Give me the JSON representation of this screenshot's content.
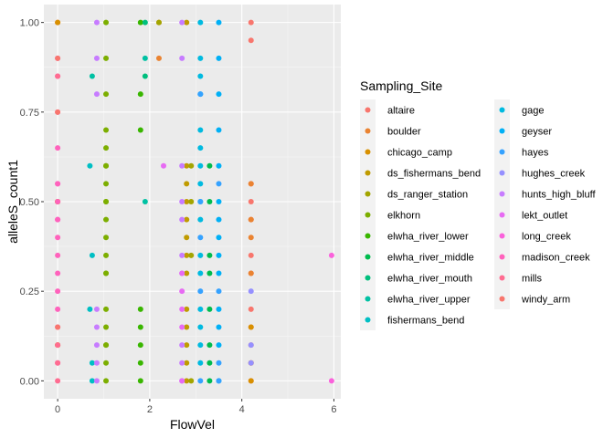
{
  "chart_data": {
    "type": "scatter",
    "title": "",
    "xlabel": "FlowVel",
    "ylabel": "alleleS_count1",
    "xlim": [
      -0.3,
      6.15
    ],
    "ylim": [
      -0.05,
      1.05
    ],
    "x_ticks": [
      0,
      2,
      4,
      6
    ],
    "x_tick_labels": [
      "0",
      "2",
      "4",
      "6"
    ],
    "y_ticks": [
      0,
      0.25,
      0.5,
      0.75,
      1
    ],
    "y_tick_labels": [
      "0.00",
      "0.25",
      "0.50",
      "0.75",
      "1.00"
    ],
    "grid": true,
    "legend": {
      "title": "Sampling_Site",
      "position": "right",
      "columns": 2
    },
    "series": [
      {
        "name": "altaire",
        "color": "#F8766D",
        "x": [
          4.2,
          4.2,
          4.2,
          4.2,
          4.2,
          4.2,
          4.2,
          4.2,
          4.2,
          4.2,
          4.2,
          4.2,
          0,
          0
        ],
        "y": [
          1,
          0.95,
          0.5,
          0.45,
          0.35,
          0.3,
          0.2,
          0.15,
          0.1,
          0.05,
          0,
          0.55,
          1,
          0.5
        ]
      },
      {
        "name": "boulder",
        "color": "#EA8331",
        "x": [
          2.2,
          2.2,
          4.2,
          4.2,
          4.2,
          4.2,
          0,
          0
        ],
        "y": [
          1,
          0.9,
          0.55,
          0.45,
          0.4,
          0.3,
          0.5,
          0.1
        ]
      },
      {
        "name": "chicago_camp",
        "color": "#D89000",
        "x": [
          0,
          0,
          0,
          4.2,
          4.2,
          4.2
        ],
        "y": [
          1,
          0.5,
          0.1,
          0.15,
          0.05,
          0
        ]
      },
      {
        "name": "ds_fishermans_bend",
        "color": "#C09B00",
        "x": [
          2.8,
          2.8,
          2.8,
          2.8,
          2.8,
          2.8,
          2.8,
          2.8,
          2.8,
          2.8,
          2.8,
          2.8,
          2.8
        ],
        "y": [
          1,
          0.6,
          0.55,
          0.45,
          0.4,
          0.35,
          0.3,
          0.2,
          0.15,
          0.1,
          0.05,
          0,
          0.5
        ]
      },
      {
        "name": "ds_ranger_station",
        "color": "#A3A500",
        "x": [
          2.2,
          2.9,
          2.9,
          2.9,
          2.9
        ],
        "y": [
          1,
          0.6,
          0.5,
          0.35,
          0
        ]
      },
      {
        "name": "elkhorn",
        "color": "#7CAE00",
        "x": [
          1.05,
          1.05,
          1.05,
          1.05,
          1.05,
          1.05,
          1.05,
          1.05,
          1.05,
          1.05,
          1.05,
          1.05,
          1.05,
          1.05,
          1.05,
          1.05,
          1.05,
          1.05,
          1.05,
          1.05,
          1.05
        ],
        "y": [
          1,
          0.9,
          0.8,
          0.7,
          0.65,
          0.6,
          0.55,
          0.5,
          0.45,
          0.4,
          0.35,
          0.3,
          0.2,
          0.15,
          0.1,
          0.05,
          0,
          0.6,
          0.5,
          0.3,
          0.1
        ]
      },
      {
        "name": "elwha_river_lower",
        "color": "#39B600",
        "x": [
          1.8,
          1.8,
          1.8,
          1.8,
          1.8,
          1.8,
          1.8,
          1.8
        ],
        "y": [
          1,
          0.8,
          0.7,
          0.2,
          0.15,
          0.1,
          0.05,
          0
        ]
      },
      {
        "name": "elwha_river_middle",
        "color": "#00BB4E",
        "x": [
          3.3,
          3.3,
          3.3,
          3.3,
          3.3,
          3.3,
          3.3,
          3.3
        ],
        "y": [
          0.6,
          0.5,
          0.35,
          0.3,
          0.2,
          0.1,
          0.05,
          0
        ]
      },
      {
        "name": "elwha_river_mouth",
        "color": "#00BF7D",
        "x": [
          1.9,
          1.9
        ],
        "y": [
          1,
          0.85
        ]
      },
      {
        "name": "elwha_river_upper",
        "color": "#00C1A3",
        "x": [
          1.9,
          1.9,
          0.75
        ],
        "y": [
          0.9,
          0.5,
          0.85
        ]
      },
      {
        "name": "fishermans_bend",
        "color": "#00BFC4",
        "x": [
          0.7,
          0.75,
          0.7,
          0.75,
          0.75
        ],
        "y": [
          0.6,
          0.35,
          0.2,
          0.05,
          0
        ]
      },
      {
        "name": "gage",
        "color": "#00BAE0",
        "x": [
          3.1,
          3.1,
          3.1,
          3.1,
          3.1,
          3.1,
          3.1,
          3.1,
          3.1,
          3.1,
          3.1,
          3.1,
          3.1,
          3.1,
          3.1,
          3.1
        ],
        "y": [
          1,
          0.9,
          0.85,
          0.8,
          0.7,
          0.65,
          0.6,
          0.55,
          0.5,
          0.45,
          0.35,
          0.3,
          0.2,
          0.15,
          0.1,
          0.05
        ]
      },
      {
        "name": "geyser",
        "color": "#00B0F6",
        "x": [
          3.5,
          3.5,
          3.5,
          3.5,
          3.5,
          3.5,
          3.5,
          3.5,
          3.5,
          3.5,
          3.5,
          3.5,
          3.5,
          3.5
        ],
        "y": [
          1,
          0.9,
          0.8,
          0.7,
          0.6,
          0.5,
          0.45,
          0.4,
          0.35,
          0.3,
          0.2,
          0.15,
          0.1,
          0
        ]
      },
      {
        "name": "hayes",
        "color": "#35A2FF",
        "x": [
          3.1,
          3.1,
          3.1,
          3.1,
          3.1,
          3.5,
          3.5,
          3.5,
          3.5
        ],
        "y": [
          0.8,
          0.5,
          0.4,
          0.25,
          0,
          0.55,
          0.25,
          0.05,
          0
        ]
      },
      {
        "name": "hughes_creek",
        "color": "#9590FF",
        "x": [
          4.2,
          4.2,
          4.2
        ],
        "y": [
          0.25,
          0.1,
          0.05
        ]
      },
      {
        "name": "hunts_high_bluff",
        "color": "#C77CFF",
        "x": [
          0.85,
          0.85,
          0.85,
          0.85,
          0.85,
          0.85,
          0.85,
          0.85,
          2.7,
          2.7,
          2.7,
          2.7,
          2.7,
          2.7,
          2.7,
          2.7,
          2.7,
          2.7
        ],
        "y": [
          1,
          0.9,
          0.8,
          0.2,
          0.15,
          0.1,
          0.05,
          0,
          1,
          0.9,
          0.6,
          0.5,
          0.45,
          0.35,
          0.3,
          0.1,
          0.05,
          0
        ]
      },
      {
        "name": "lekt_outlet",
        "color": "#E76BF3",
        "x": [
          2.3,
          2.7,
          2.7,
          2.7,
          2.7,
          2.7
        ],
        "y": [
          0.6,
          0.3,
          0.25,
          0.15,
          0.2,
          0
        ]
      },
      {
        "name": "long_creek",
        "color": "#FA62DB",
        "x": [
          5.95,
          5.95,
          0,
          0,
          0
        ],
        "y": [
          0.35,
          0,
          0.9,
          0.55,
          0.45
        ]
      },
      {
        "name": "madison_creek",
        "color": "#FF62BC",
        "x": [
          0,
          0,
          0,
          0,
          0,
          0,
          0,
          0,
          0,
          0,
          0,
          0,
          0
        ],
        "y": [
          0.85,
          0.75,
          0.65,
          0.55,
          0.5,
          0.45,
          0.4,
          0.35,
          0.3,
          0.25,
          0.2,
          0.15,
          0.05
        ]
      },
      {
        "name": "mills",
        "color": "#FF6C91",
        "x": [
          0,
          0,
          0,
          0
        ],
        "y": [
          0.85,
          0.1,
          0.05,
          0
        ]
      },
      {
        "name": "windy_arm",
        "color": "#F8766D",
        "x": [
          0,
          0,
          0
        ],
        "y": [
          0.9,
          0.75,
          0.15
        ]
      }
    ]
  }
}
